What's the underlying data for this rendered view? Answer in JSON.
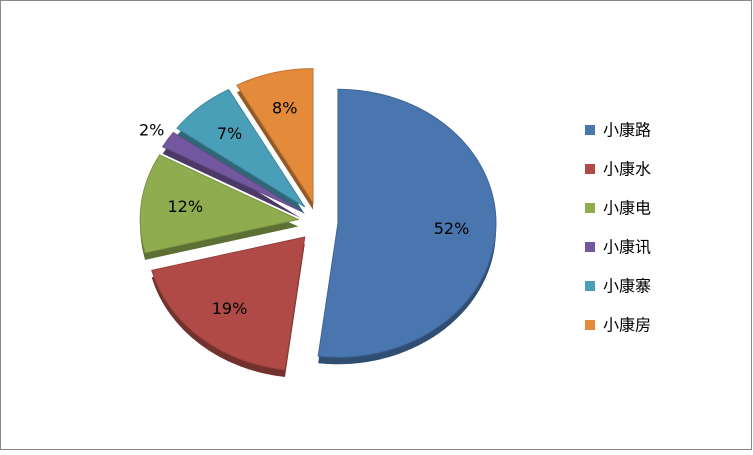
{
  "chart_data": {
    "type": "pie",
    "categories": [
      "小康路",
      "小康水",
      "小康电",
      "小康讯",
      "小康寨",
      "小康房"
    ],
    "values": [
      52,
      19,
      12,
      2,
      7,
      8
    ],
    "value_labels": [
      "52%",
      "19%",
      "12%",
      "2%",
      "7%",
      "8%"
    ],
    "colors": [
      "#4a76b0",
      "#b04a47",
      "#8fad4f",
      "#7358a0",
      "#4a9fb8",
      "#e38a3b"
    ],
    "legend": "right"
  }
}
